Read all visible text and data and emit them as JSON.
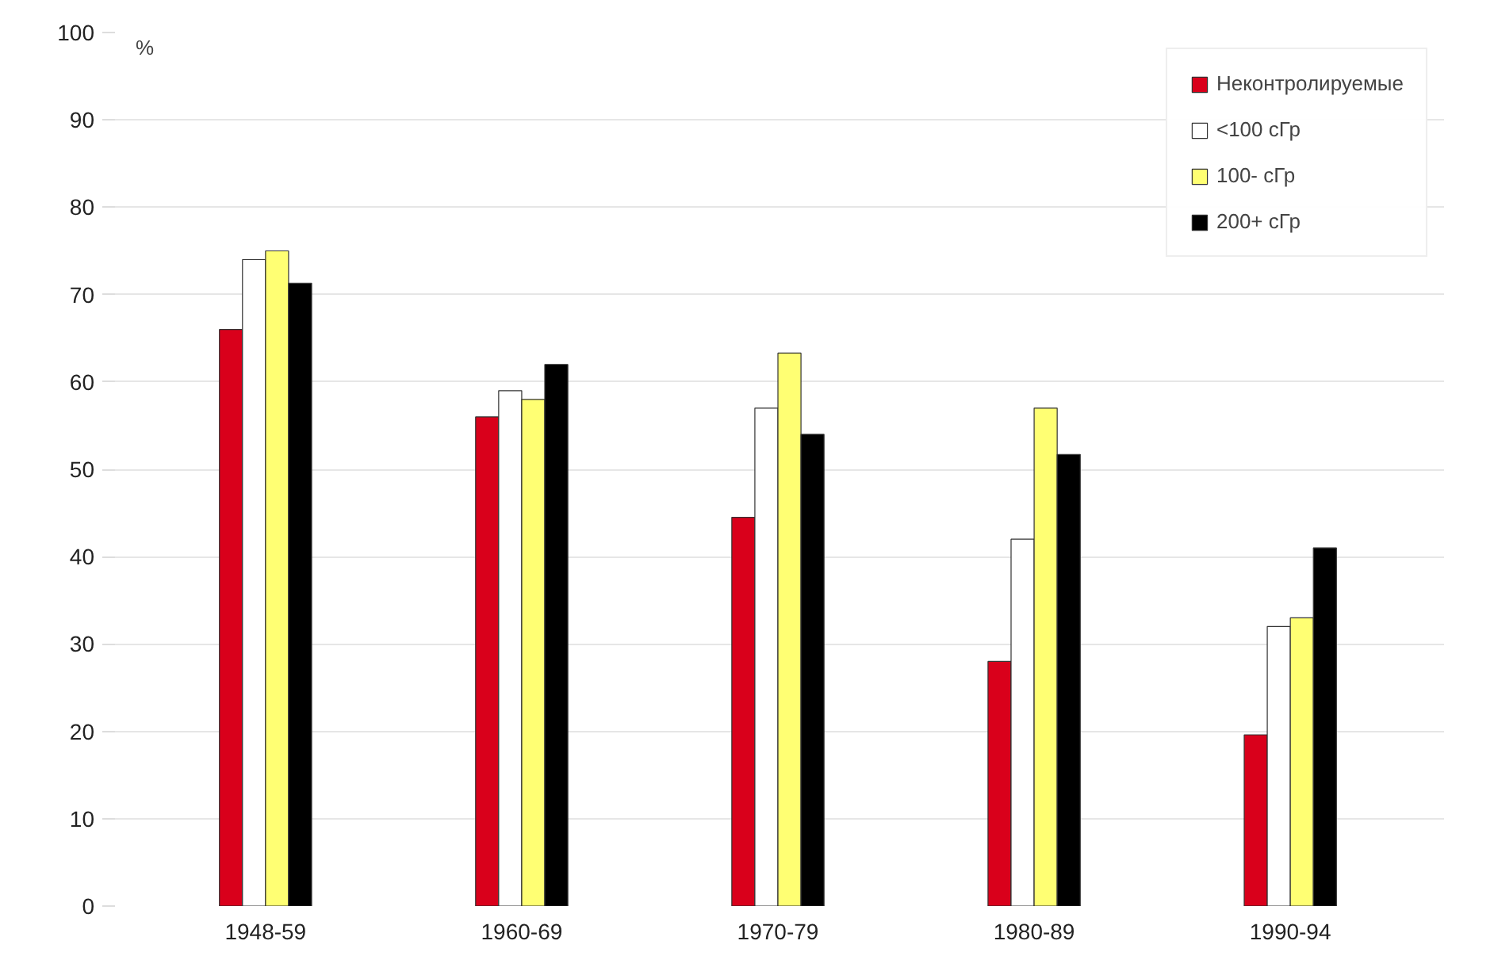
{
  "chart_data": {
    "type": "bar",
    "ylabel": "%",
    "categories": [
      "1948-59",
      "1960-69",
      "1970-79",
      "1980-89",
      "1990-94"
    ],
    "series": [
      {
        "name": "Неконтролируемые",
        "color": "#d9001b",
        "values": [
          66,
          56,
          44.5,
          28,
          19.6
        ]
      },
      {
        "name": "<100 сГр",
        "color": "#ffffff",
        "values": [
          74,
          59,
          57,
          42,
          32
        ]
      },
      {
        "name": "100- сГр",
        "color": "#ffff73",
        "values": [
          75,
          58,
          63.3,
          57,
          33
        ]
      },
      {
        "name": "200+ сГр",
        "color": "#000000",
        "values": [
          71.3,
          62,
          54,
          51.7,
          41
        ]
      }
    ],
    "ylim": [
      0,
      100
    ],
    "yticks": [
      0,
      10,
      20,
      30,
      40,
      50,
      60,
      70,
      80,
      90,
      100
    ],
    "grid": "y",
    "legend": "top right"
  }
}
